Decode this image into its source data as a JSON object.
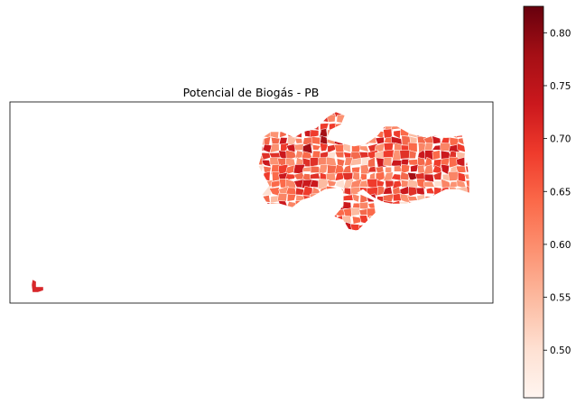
{
  "chart_data": {
    "type": "choropleth",
    "title": "Potencial de Biogás - PB",
    "colormap": "Reds",
    "colorbar": {
      "range": [
        0.455,
        0.825
      ],
      "ticks": [
        0.5,
        0.55,
        0.6,
        0.65,
        0.7,
        0.75,
        0.8
      ],
      "tick_labels": [
        "0.50",
        "0.55",
        "0.60",
        "0.65",
        "0.70",
        "0.75",
        "0.80"
      ],
      "placement": "right"
    },
    "axes": {
      "ticks_visible": false,
      "grid": false
    }
  }
}
